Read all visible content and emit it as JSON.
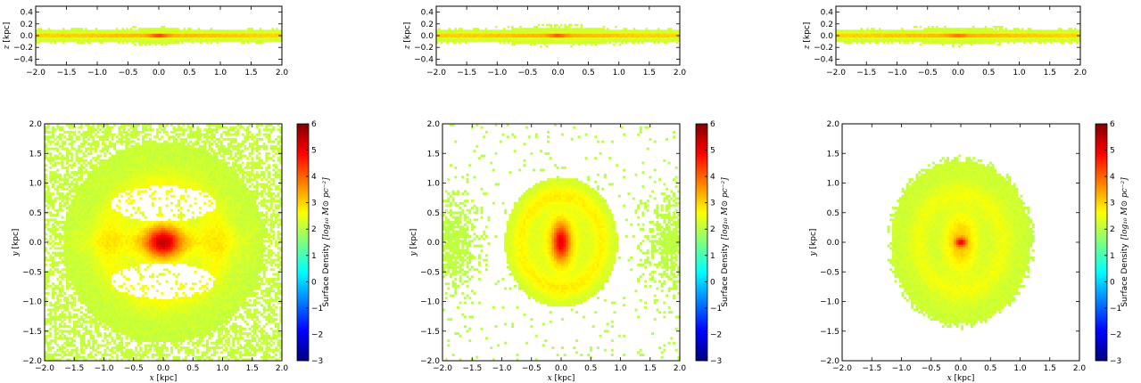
{
  "chart_data": [
    {
      "type": "heatmap",
      "panel": "side view",
      "xlabel": "x [kpc]",
      "ylabel": "z [kpc]",
      "xlim": [
        -2.0,
        2.0
      ],
      "ylim": [
        -0.5,
        0.5
      ],
      "x_ticks": [
        "-2.0",
        "-1.5",
        "-1.0",
        "-0.5",
        "0.0",
        "0.5",
        "1.0",
        "1.5",
        "2.0"
      ],
      "y_ticks": [
        "0.4",
        "0.2",
        "0.0",
        "-0.2",
        "-0.4"
      ],
      "thin_disk_extent_kpc": 2.0,
      "peak_log_density": 4.6
    },
    {
      "type": "heatmap",
      "panel": "side view",
      "xlabel": "x [kpc]",
      "ylabel": "z [kpc]",
      "xlim": [
        -2.0,
        2.0
      ],
      "ylim": [
        -0.5,
        0.5
      ],
      "x_ticks": [
        "-2.0",
        "-1.5",
        "-1.0",
        "-0.5",
        "0.0",
        "0.5",
        "1.0",
        "1.5",
        "2.0"
      ],
      "y_ticks": [
        "0.4",
        "0.2",
        "0.0",
        "-0.2",
        "-0.4"
      ],
      "thin_disk_extent_kpc": 2.0,
      "peak_log_density": 4.3
    },
    {
      "type": "heatmap",
      "panel": "side view",
      "xlabel": "x [kpc]",
      "ylabel": "z [kpc]",
      "xlim": [
        -2.0,
        2.0
      ],
      "ylim": [
        -0.5,
        0.5
      ],
      "x_ticks": [
        "-2.0",
        "-1.5",
        "-1.0",
        "-0.5",
        "0.0",
        "0.5",
        "1.0",
        "1.5",
        "2.0"
      ],
      "y_ticks": [
        "0.4",
        "0.2",
        "0.0",
        "-0.2",
        "-0.4"
      ],
      "thin_disk_extent_kpc": 2.0,
      "peak_log_density": 4.0
    },
    {
      "type": "heatmap",
      "panel": "face-on",
      "xlabel": "x [kpc]",
      "ylabel": "y [kpc]",
      "xlim": [
        -2.0,
        2.0
      ],
      "ylim": [
        -2.0,
        2.0
      ],
      "x_ticks": [
        "-2.0",
        "-1.5",
        "-1.0",
        "-0.5",
        "0.0",
        "0.5",
        "1.0",
        "1.5",
        "2.0"
      ],
      "y_ticks": [
        "2.0",
        "1.5",
        "1.0",
        "0.5",
        "0.0",
        "-0.5",
        "-1.0",
        "-1.5",
        "-2.0"
      ],
      "colorbar_label": "Surface Density [log10 M⊙ pc⁻²]",
      "colorbar_ticks": [
        "6",
        "5",
        "4",
        "3",
        "2",
        "1",
        "0",
        "-1",
        "-2",
        "-3"
      ],
      "colorbar_range": [
        -3,
        6
      ],
      "morphology": "central bulge with bar-like lobes above and below, diffuse halo filling the frame",
      "core_radius_kpc": 0.35,
      "core_peak_log_density": 4.8
    },
    {
      "type": "heatmap",
      "panel": "face-on",
      "xlabel": "x [kpc]",
      "ylabel": "y [kpc]",
      "xlim": [
        -2.0,
        2.0
      ],
      "ylim": [
        -2.0,
        2.0
      ],
      "x_ticks": [
        "-2.0",
        "-1.5",
        "-1.0",
        "-0.5",
        "0.0",
        "0.5",
        "1.0",
        "1.5",
        "2.0"
      ],
      "y_ticks": [
        "2.0",
        "1.5",
        "1.0",
        "0.5",
        "0.0",
        "-0.5",
        "-1.0",
        "-1.5",
        "-2.0"
      ],
      "colorbar_label": "Surface Density [log10 M⊙ pc⁻²]",
      "colorbar_ticks": [
        "6",
        "5",
        "4",
        "3",
        "2",
        "1",
        "0",
        "-1",
        "-2",
        "-3"
      ],
      "colorbar_range": [
        -3,
        6
      ],
      "morphology": "elliptical disk with ring, sparse outer patches at left and right edges",
      "disk_radius_x_kpc": 0.95,
      "disk_radius_y_kpc": 1.1,
      "core_peak_log_density": 4.7
    },
    {
      "type": "heatmap",
      "panel": "face-on",
      "xlabel": "x [kpc]",
      "ylabel": "y [kpc]",
      "xlim": [
        -2.0,
        2.0
      ],
      "ylim": [
        -2.0,
        2.0
      ],
      "x_ticks": [
        "-2.0",
        "-1.5",
        "-1.0",
        "-0.5",
        "0.0",
        "0.5",
        "1.0",
        "1.5",
        "2.0"
      ],
      "y_ticks": [
        "2.0",
        "1.5",
        "1.0",
        "0.5",
        "0.0",
        "-0.5",
        "-1.0",
        "-1.5",
        "-2.0"
      ],
      "colorbar_label": "Surface Density [log10 M⊙ pc⁻²]",
      "colorbar_ticks": [
        "6",
        "5",
        "4",
        "3",
        "2",
        "1",
        "0",
        "-1",
        "-2",
        "-3"
      ],
      "colorbar_range": [
        -3,
        6
      ],
      "morphology": "smooth elliptical disk with faint ring, compact core",
      "disk_radius_x_kpc": 1.2,
      "disk_radius_y_kpc": 1.4,
      "core_peak_log_density": 4.6
    }
  ],
  "labels": {
    "x_var": "x",
    "x_unit": " [kpc]",
    "z_var": "z",
    "y_var": "y",
    "y_unit": " [kpc]",
    "cbar_text": "Surface Density",
    "cbar_math": "[log₁₀ M⊙ pc⁻²]"
  },
  "colormap": {
    "name": "jet",
    "stops": [
      "#00007f",
      "#0000ff",
      "#007fff",
      "#00ffff",
      "#7fff7f",
      "#ffff00",
      "#ff7f00",
      "#ff0000",
      "#7f0000"
    ]
  }
}
